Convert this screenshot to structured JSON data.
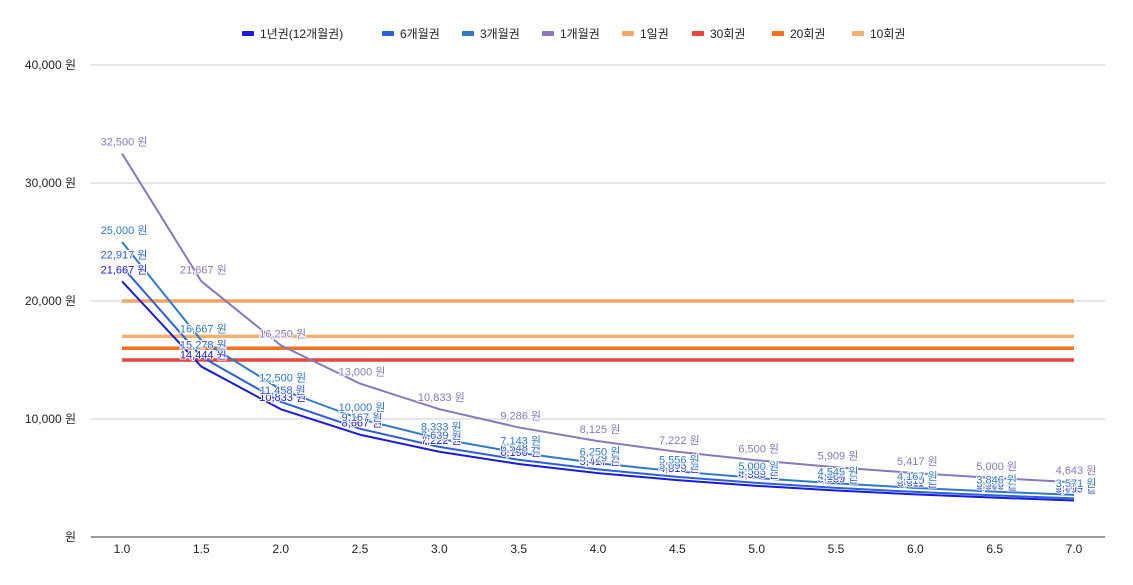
{
  "chart_data": {
    "type": "line",
    "x": [
      1.0,
      1.5,
      2.0,
      2.5,
      3.0,
      3.5,
      4.0,
      4.5,
      5.0,
      5.5,
      6.0,
      6.5,
      7.0
    ],
    "x_tick_labels": [
      "1.0",
      "1.5",
      "2.0",
      "2.5",
      "3.0",
      "3.5",
      "4.0",
      "4.5",
      "5.0",
      "5.5",
      "6.0",
      "6.5",
      "7.0"
    ],
    "y_tick_labels": [
      "원",
      "10,000 원",
      "20,000 원",
      "30,000 원",
      "40,000 원"
    ],
    "y_ticks": [
      0,
      10000,
      20000,
      30000,
      40000
    ],
    "ylim": [
      0,
      40000
    ],
    "xlim": [
      1.0,
      7.0
    ],
    "grid": true,
    "legend_position": "top",
    "value_suffix": " 원",
    "series": [
      {
        "name": "1년권(12개월권)",
        "color": "#1a1adb",
        "labels": true,
        "values": [
          21667,
          14444,
          10833,
          8667,
          7222,
          6190,
          5417,
          4815,
          4333,
          3939,
          3611,
          3333,
          3095
        ]
      },
      {
        "name": "6개월권",
        "color": "#2c5fd8",
        "labels": true,
        "values": [
          22917,
          15278,
          11458,
          9167,
          7639,
          6548,
          5729,
          5093,
          4583,
          4167,
          3819,
          3526,
          3274
        ]
      },
      {
        "name": "3개월권",
        "color": "#2f7ac8",
        "labels": true,
        "values": [
          25000,
          16667,
          12500,
          10000,
          8333,
          7143,
          6250,
          5556,
          5000,
          4545,
          4167,
          3846,
          3571
        ]
      },
      {
        "name": "1개월권",
        "color": "#8a78bf",
        "labels": true,
        "values": [
          32500,
          21667,
          16250,
          13000,
          10833,
          9286,
          8125,
          7222,
          6500,
          5909,
          5417,
          5000,
          4643
        ]
      },
      {
        "name": "1일권",
        "color": "#f6a366",
        "labels": false,
        "values": [
          20000,
          20000,
          20000,
          20000,
          20000,
          20000,
          20000,
          20000,
          20000,
          20000,
          20000,
          20000,
          20000
        ]
      },
      {
        "name": "30회권",
        "color": "#e8453c",
        "labels": false,
        "values": [
          15000,
          15000,
          15000,
          15000,
          15000,
          15000,
          15000,
          15000,
          15000,
          15000,
          15000,
          15000,
          15000
        ]
      },
      {
        "name": "20회권",
        "color": "#f4711f",
        "labels": false,
        "values": [
          16000,
          16000,
          16000,
          16000,
          16000,
          16000,
          16000,
          16000,
          16000,
          16000,
          16000,
          16000,
          16000
        ]
      },
      {
        "name": "10회권",
        "color": "#f7b06a",
        "labels": false,
        "values": [
          17000,
          17000,
          17000,
          17000,
          17000,
          17000,
          17000,
          17000,
          17000,
          17000,
          17000,
          17000,
          17000
        ]
      }
    ]
  }
}
